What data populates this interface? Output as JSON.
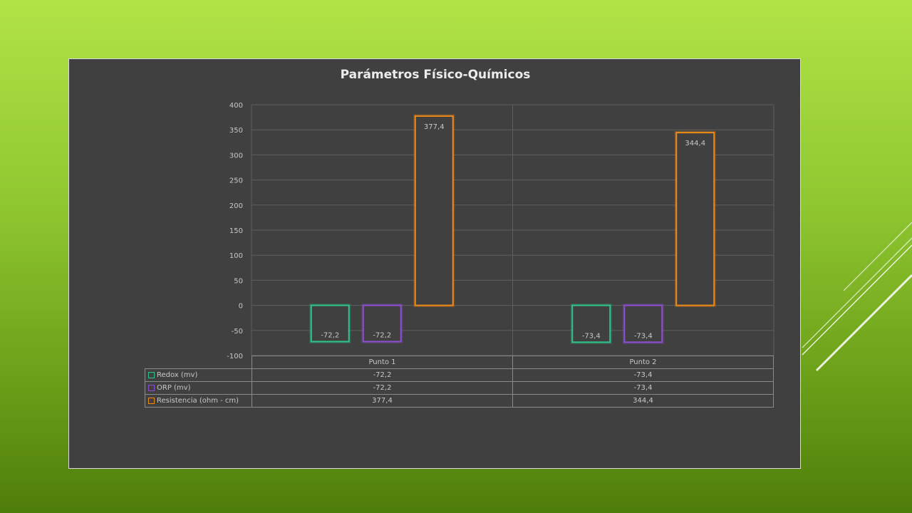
{
  "chart_data": {
    "type": "bar",
    "title": "Parámetros Físico-Químicos",
    "categories": [
      "Punto 1",
      "Punto 2"
    ],
    "ylim": [
      -100,
      400
    ],
    "yticks": [
      -100,
      -50,
      0,
      50,
      100,
      150,
      200,
      250,
      300,
      350,
      400
    ],
    "ytick_labels": [
      "-100",
      "-50",
      "0",
      "50",
      "100",
      "150",
      "200",
      "250",
      "300",
      "350",
      "400"
    ],
    "grid": true,
    "legend": "data-table",
    "series": [
      {
        "name": "Redox (mv)",
        "color": "#2fc48a",
        "values": [
          -72.2,
          -73.4
        ],
        "labels": [
          "-72,2",
          "-73,4"
        ]
      },
      {
        "name": "ORP (mv)",
        "color": "#8d4fd1",
        "values": [
          -72.2,
          -73.4
        ],
        "labels": [
          "-72,2",
          "-73,4"
        ]
      },
      {
        "name": "Resistencia (ohm - cm)",
        "color": "#ee8b17",
        "values": [
          377.4,
          344.4
        ],
        "labels": [
          "377,4",
          "344,4"
        ]
      }
    ]
  }
}
